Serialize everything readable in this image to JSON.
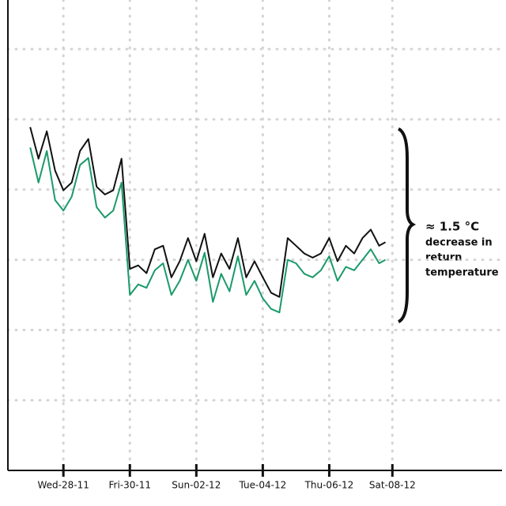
{
  "chart_data": {
    "type": "line",
    "annotation": [
      "≈ 1.5 °C",
      "decrease in",
      "return",
      "temperature"
    ],
    "x": [
      -1.0,
      -0.75,
      -0.5,
      -0.25,
      0,
      0.25,
      0.5,
      0.75,
      1.0,
      1.25,
      1.5,
      1.75,
      2.0,
      2.25,
      2.5,
      2.75,
      3.0,
      3.25,
      3.5,
      3.75,
      4.0,
      4.25,
      4.5,
      4.75,
      5.0,
      5.25,
      5.5,
      5.75,
      6.0,
      6.25,
      6.5,
      6.75,
      7.0,
      7.25,
      7.5,
      7.75,
      8.0,
      8.25,
      8.5,
      8.75,
      9.0,
      9.25,
      9.5,
      9.69
    ],
    "series": [
      {
        "name": "black",
        "color": "#111111",
        "values": [
          4.89,
          4.44,
          4.83,
          4.27,
          3.99,
          4.1,
          4.55,
          4.72,
          4.04,
          3.93,
          3.99,
          4.44,
          2.87,
          2.92,
          2.81,
          3.15,
          3.2,
          2.75,
          2.98,
          3.31,
          2.98,
          3.37,
          2.75,
          3.09,
          2.87,
          3.31,
          2.75,
          2.98,
          2.75,
          2.53,
          2.47,
          3.31,
          3.2,
          3.09,
          3.03,
          3.09,
          3.31,
          2.98,
          3.2,
          3.09,
          3.31,
          3.43,
          3.2,
          3.25
        ]
      },
      {
        "name": "green",
        "color": "#1a9a6a",
        "values": [
          4.6,
          4.1,
          4.55,
          3.85,
          3.7,
          3.9,
          4.35,
          4.45,
          3.75,
          3.6,
          3.7,
          4.1,
          2.5,
          2.65,
          2.6,
          2.85,
          2.95,
          2.5,
          2.7,
          3.0,
          2.7,
          3.1,
          2.4,
          2.8,
          2.55,
          3.05,
          2.5,
          2.7,
          2.45,
          2.3,
          2.25,
          3.0,
          2.95,
          2.8,
          2.75,
          2.85,
          3.05,
          2.7,
          2.9,
          2.85,
          3.0,
          3.15,
          2.95,
          3.0
        ]
      }
    ],
    "xlim": [
      -1.67,
      13.2
    ],
    "xticks": [
      {
        "value": 0,
        "label": "Wed-28-11"
      },
      {
        "value": 2,
        "label": "Fri-30-11"
      },
      {
        "value": 4,
        "label": "Sun-02-12"
      },
      {
        "value": 6,
        "label": "Tue-04-12"
      },
      {
        "value": 8,
        "label": "Thu-06-12"
      },
      {
        "value": 9.9,
        "label": "Sat-08-12"
      }
    ],
    "ylim": [
      0,
      6.7
    ],
    "yticks": [
      1,
      2,
      3,
      4,
      5,
      6
    ],
    "grid": true
  }
}
